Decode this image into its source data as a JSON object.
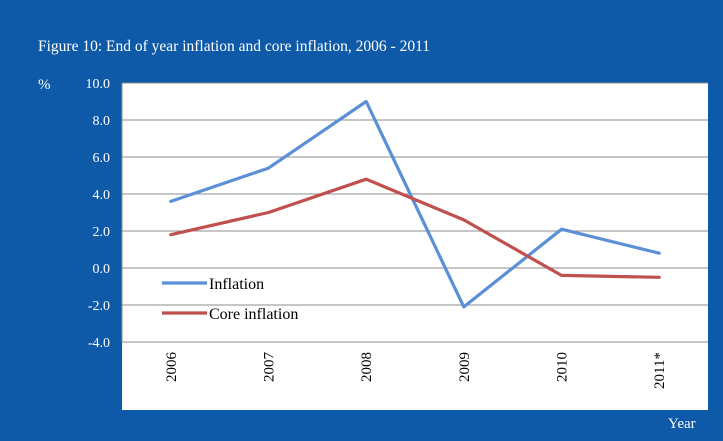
{
  "chart_data": {
    "type": "line",
    "title": "Figure 10: End of year inflation and core inflation, 2006 - 2011",
    "ylabel": "%",
    "xlabel": "Year",
    "categories": [
      "2006",
      "2007",
      "2008",
      "2009",
      "2010",
      "2011*"
    ],
    "ylim": [
      -4.0,
      10.0
    ],
    "yticks": [
      "10.0",
      "8.0",
      "6.0",
      "4.0",
      "2.0",
      "0.0",
      "-2.0",
      "-4.0"
    ],
    "ytick_values": [
      10,
      8,
      6,
      4,
      2,
      0,
      -2,
      -4
    ],
    "grid": true,
    "legend_position": "bottom-left",
    "series": [
      {
        "name": "Inflation",
        "color": "#5b8fd6",
        "values": [
          3.6,
          5.4,
          9.0,
          -2.1,
          2.1,
          0.8
        ]
      },
      {
        "name": "Core inflation",
        "color": "#c0504d",
        "values": [
          1.8,
          3.0,
          4.8,
          2.6,
          -0.4,
          -0.5
        ]
      }
    ]
  },
  "colors": {
    "frame": "#0f5aa8",
    "plot_background": "#ffffff",
    "gridline": "#8c8c8c"
  }
}
